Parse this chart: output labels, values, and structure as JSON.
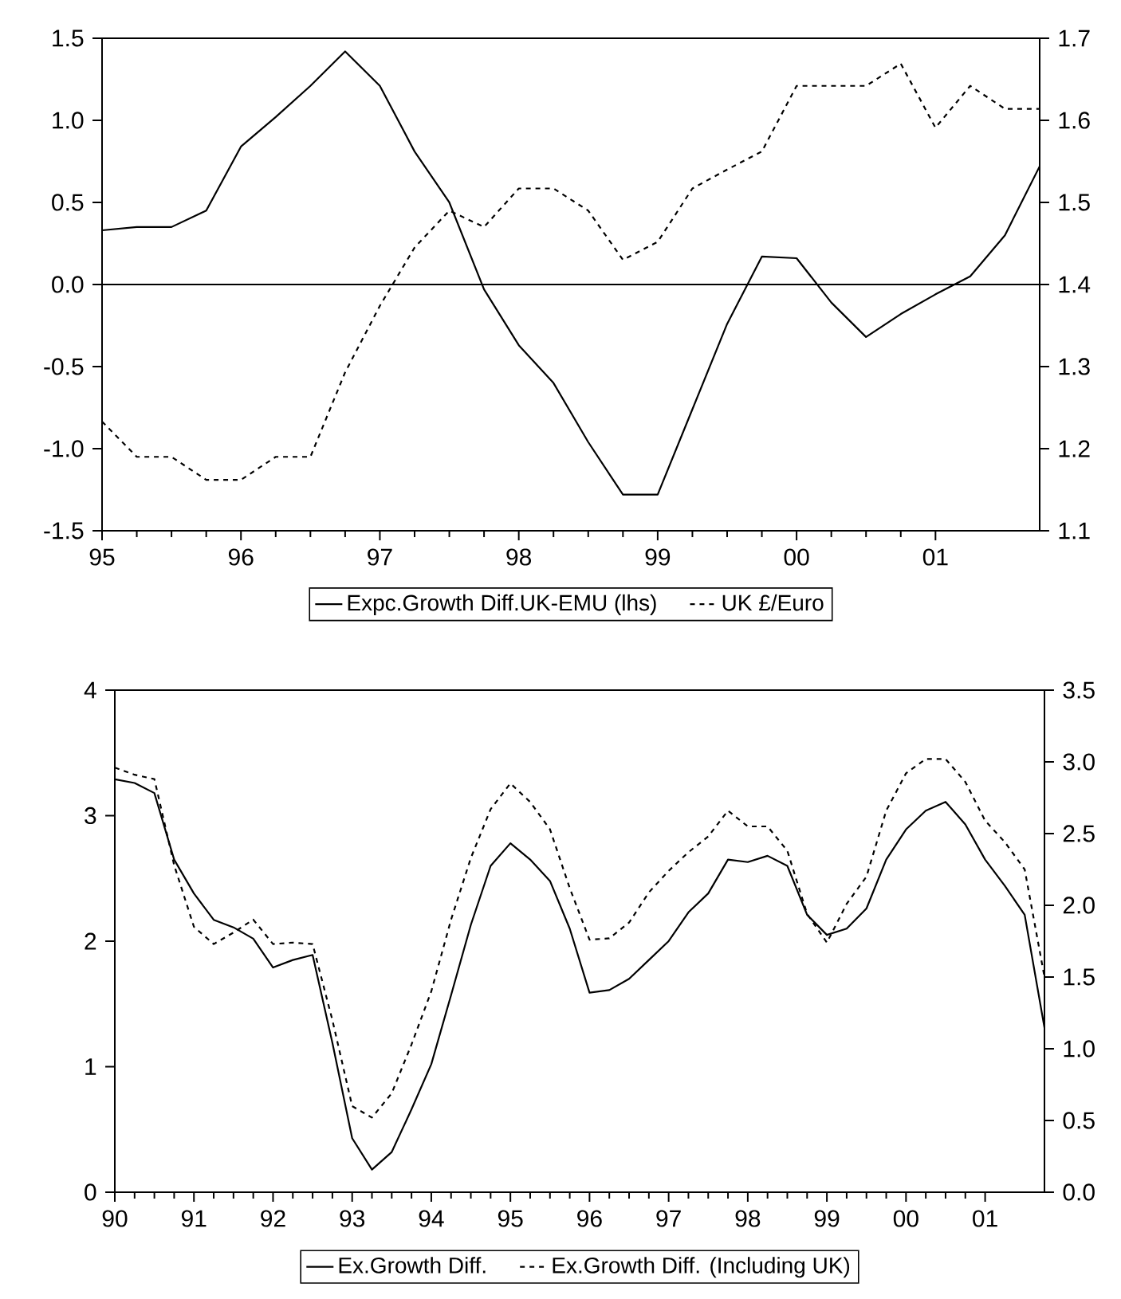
{
  "chart_data": [
    {
      "type": "line",
      "x": [
        1995,
        1995.25,
        1995.5,
        1995.75,
        1996,
        1996.25,
        1996.5,
        1996.75,
        1997,
        1997.25,
        1997.5,
        1997.75,
        1998,
        1998.25,
        1998.5,
        1998.75,
        1999,
        1999.25,
        1999.5,
        1999.75,
        2000,
        2000.25,
        2000.5,
        2000.75,
        2001,
        2001.25,
        2001.5,
        2001.75
      ],
      "series": [
        {
          "name": "Expc.Growth Diff.UK-EMU (lhs)",
          "color": "#000000",
          "line_style": "solid",
          "values": [
            0.33,
            0.35,
            0.35,
            0.45,
            0.84,
            1.02,
            1.21,
            1.42,
            1.21,
            0.81,
            0.5,
            -0.03,
            -0.37,
            -0.6,
            -0.96,
            -1.28,
            -1.28,
            -0.76,
            -0.24,
            0.17,
            0.16,
            -0.11,
            -0.32,
            -0.18,
            -0.06,
            0.05,
            0.3,
            0.72
          ]
        },
        {
          "name": "UK £/Euro",
          "color": "#000000",
          "line_style": "dashed",
          "axis": "y2",
          "values": [
            1.233,
            1.19,
            1.19,
            1.162,
            1.162,
            1.19,
            1.19,
            1.293,
            1.374,
            1.445,
            1.49,
            1.47,
            1.517,
            1.517,
            1.49,
            1.43,
            1.452,
            1.517,
            1.54,
            1.562,
            1.642,
            1.642,
            1.642,
            1.669,
            1.591,
            1.642,
            1.614,
            1.614
          ]
        }
      ],
      "xlim": [
        1995,
        2001.75
      ],
      "xticks": [
        {
          "value": 1995,
          "label": "95"
        },
        {
          "value": 1996,
          "label": "96"
        },
        {
          "value": 1997,
          "label": "97"
        },
        {
          "value": 1998,
          "label": "98"
        },
        {
          "value": 1999,
          "label": "99"
        },
        {
          "value": 2000,
          "label": "00"
        },
        {
          "value": 2001,
          "label": "01"
        }
      ],
      "ylim": [
        -1.5,
        1.5
      ],
      "yticks": [
        {
          "value": -1.5,
          "label": "-1.5"
        },
        {
          "value": -1,
          "label": "-1.0"
        },
        {
          "value": -0.5,
          "label": "-0.5"
        },
        {
          "value": 0,
          "label": "0.0"
        },
        {
          "value": 0.5,
          "label": "0.5"
        },
        {
          "value": 1,
          "label": "1.0"
        },
        {
          "value": 1.5,
          "label": "1.5"
        }
      ],
      "y2lim": [
        1.1,
        1.7
      ],
      "y2ticks": [
        {
          "value": 1.1,
          "label": "1.1"
        },
        {
          "value": 1.2,
          "label": "1.2"
        },
        {
          "value": 1.3,
          "label": "1.3"
        },
        {
          "value": 1.4,
          "label": "1.4"
        },
        {
          "value": 1.5,
          "label": "1.5"
        },
        {
          "value": 1.6,
          "label": "1.6"
        },
        {
          "value": 1.7,
          "label": "1.7"
        }
      ],
      "ref_lines": [
        {
          "axis": "y",
          "value": 0,
          "color": "#000000"
        }
      ],
      "legend": "bottom"
    },
    {
      "type": "line",
      "x": [
        1990,
        1990.25,
        1990.5,
        1990.75,
        1991,
        1991.25,
        1991.5,
        1991.75,
        1992,
        1992.25,
        1992.5,
        1992.75,
        1993,
        1993.25,
        1993.5,
        1993.75,
        1994,
        1994.25,
        1994.5,
        1994.75,
        1995,
        1995.25,
        1995.5,
        1995.75,
        1996,
        1996.25,
        1996.5,
        1996.75,
        1997,
        1997.25,
        1997.5,
        1997.75,
        1998,
        1998.25,
        1998.5,
        1998.75,
        1999,
        1999.25,
        1999.5,
        1999.75,
        2000,
        2000.25,
        2000.5,
        2000.75,
        2001,
        2001.25,
        2001.5,
        2001.75
      ],
      "series": [
        {
          "name": "Ex.Growth Diff.",
          "color": "#000000",
          "line_style": "solid",
          "values": [
            3.29,
            3.26,
            3.18,
            2.65,
            2.38,
            2.17,
            2.11,
            2.02,
            1.79,
            1.85,
            1.89,
            1.19,
            0.43,
            0.18,
            0.32,
            0.66,
            1.02,
            1.57,
            2.13,
            2.6,
            2.78,
            2.65,
            2.48,
            2.1,
            1.59,
            1.61,
            1.7,
            1.85,
            2.0,
            2.23,
            2.38,
            2.65,
            2.63,
            2.68,
            2.6,
            2.21,
            2.05,
            2.1,
            2.26,
            2.65,
            2.89,
            3.04,
            3.11,
            2.93,
            2.65,
            2.44,
            2.21,
            1.31
          ]
        },
        {
          "name": "Ex.Growth Diff. (Including UK)",
          "color": "#000000",
          "line_style": "dashed",
          "axis": "y2",
          "values": [
            2.96,
            2.91,
            2.88,
            2.28,
            1.85,
            1.73,
            1.81,
            1.9,
            1.73,
            1.74,
            1.73,
            1.2,
            0.6,
            0.52,
            0.69,
            1.03,
            1.4,
            1.9,
            2.33,
            2.67,
            2.85,
            2.72,
            2.53,
            2.12,
            1.76,
            1.77,
            1.88,
            2.09,
            2.24,
            2.37,
            2.48,
            2.66,
            2.55,
            2.55,
            2.38,
            1.94,
            1.74,
            2.01,
            2.2,
            2.66,
            2.92,
            3.02,
            3.02,
            2.86,
            2.59,
            2.44,
            2.25,
            1.5
          ]
        }
      ],
      "xlim": [
        1990,
        2001.75
      ],
      "xticks": [
        {
          "value": 1990,
          "label": "90"
        },
        {
          "value": 1991,
          "label": "91"
        },
        {
          "value": 1992,
          "label": "92"
        },
        {
          "value": 1993,
          "label": "93"
        },
        {
          "value": 1994,
          "label": "94"
        },
        {
          "value": 1995,
          "label": "95"
        },
        {
          "value": 1996,
          "label": "96"
        },
        {
          "value": 1997,
          "label": "97"
        },
        {
          "value": 1998,
          "label": "98"
        },
        {
          "value": 1999,
          "label": "99"
        },
        {
          "value": 2000,
          "label": "00"
        },
        {
          "value": 2001,
          "label": "01"
        }
      ],
      "ylim": [
        0,
        4
      ],
      "yticks": [
        0,
        1,
        2,
        3,
        4
      ],
      "y2lim": [
        0,
        3.5
      ],
      "y2ticks": [
        {
          "value": 0,
          "label": "0.0"
        },
        {
          "value": 0.5,
          "label": "0.5"
        },
        {
          "value": 1,
          "label": "1.0"
        },
        {
          "value": 1.5,
          "label": "1.5"
        },
        {
          "value": 2,
          "label": "2.0"
        },
        {
          "value": 2.5,
          "label": "2.5"
        },
        {
          "value": 3,
          "label": "3.0"
        },
        {
          "value": 3.5,
          "label": "3.5"
        }
      ],
      "legend": "bottom"
    }
  ]
}
